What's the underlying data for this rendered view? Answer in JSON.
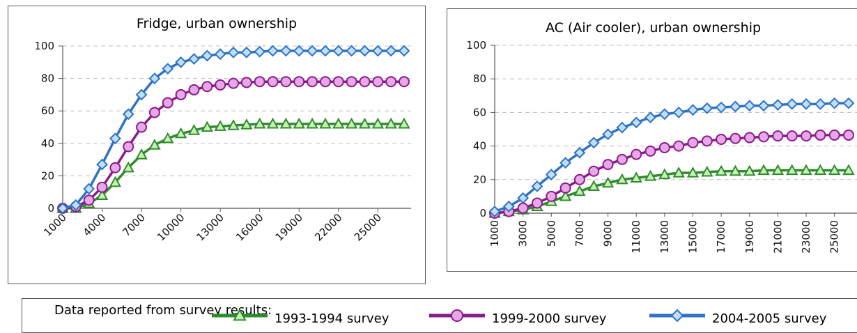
{
  "legend_heading": "Data reported from survey results:",
  "chart_data": [
    {
      "type": "line",
      "title": "Fridge, urban ownership",
      "xlabel": "",
      "ylabel": "",
      "x": [
        1000,
        2000,
        3000,
        4000,
        5000,
        6000,
        7000,
        8000,
        9000,
        10000,
        11000,
        12000,
        13000,
        14000,
        15000,
        16000,
        17000,
        18000,
        19000,
        20000,
        21000,
        22000,
        23000,
        24000,
        25000,
        26000,
        27000
      ],
      "x_tick_labels": [
        "1000",
        "4000",
        "7000",
        "10000",
        "13000",
        "16000",
        "19000",
        "22000",
        "25000"
      ],
      "ylim": [
        0,
        100
      ],
      "y_ticks": [
        0,
        20,
        40,
        60,
        80,
        100
      ],
      "grid": true,
      "series": [
        {
          "name": "1993-1994 survey",
          "color": "#2e8b2e",
          "marker": "triangle",
          "values": [
            0,
            0,
            3,
            8,
            16,
            25,
            33,
            39,
            43,
            46,
            48,
            50,
            50.5,
            51,
            51.5,
            52,
            52,
            52,
            52,
            52,
            52,
            52,
            52,
            52,
            52,
            52,
            52
          ]
        },
        {
          "name": "1999-2000 survey",
          "color": "#8b1a8b",
          "marker": "circle",
          "values": [
            0,
            1,
            5,
            13,
            25,
            38,
            50,
            59,
            65,
            70,
            73,
            75,
            76,
            77,
            77.5,
            78,
            78,
            78,
            78,
            78,
            78,
            78,
            78,
            78,
            78,
            78,
            78
          ]
        },
        {
          "name": "2004-2005 survey",
          "color": "#2f72c4",
          "marker": "diamond",
          "values": [
            0,
            2,
            12,
            27,
            43,
            58,
            70,
            80,
            86,
            90,
            92,
            94,
            95,
            96,
            96,
            96.5,
            97,
            97,
            97,
            97,
            97,
            97,
            97,
            97,
            97,
            97,
            97
          ]
        }
      ]
    },
    {
      "type": "line",
      "title": "AC (Air cooler), urban ownership",
      "xlabel": "",
      "ylabel": "",
      "x": [
        1000,
        2000,
        3000,
        4000,
        5000,
        6000,
        7000,
        8000,
        9000,
        10000,
        11000,
        12000,
        13000,
        14000,
        15000,
        16000,
        17000,
        18000,
        19000,
        20000,
        21000,
        22000,
        23000,
        24000,
        25000,
        26000
      ],
      "x_tick_labels": [
        "1000",
        "3000",
        "5000",
        "7000",
        "9000",
        "11000",
        "13000",
        "15000",
        "17000",
        "19000",
        "21000",
        "23000",
        "25000"
      ],
      "ylim": [
        0,
        100
      ],
      "y_ticks": [
        0,
        20,
        40,
        60,
        80,
        100
      ],
      "grid": true,
      "series": [
        {
          "name": "1993-1994 survey",
          "color": "#2e8b2e",
          "marker": "triangle",
          "values": [
            0,
            1,
            2,
            4,
            7,
            10,
            13,
            16,
            18,
            20,
            21,
            22,
            23,
            24,
            24,
            24.5,
            25,
            25,
            25,
            25.5,
            25.5,
            25.5,
            25.5,
            25.5,
            25.5,
            25.5
          ]
        },
        {
          "name": "1999-2000 survey",
          "color": "#8b1a8b",
          "marker": "circle",
          "values": [
            0,
            1,
            3,
            6,
            10,
            15,
            20,
            25,
            29,
            32,
            35,
            37,
            39,
            40,
            42,
            43,
            44,
            44.5,
            45,
            45.5,
            46,
            46,
            46,
            46.5,
            46.5,
            46.5
          ]
        },
        {
          "name": "2004-2005 survey",
          "color": "#2f72c4",
          "marker": "diamond",
          "values": [
            1,
            4,
            9,
            16,
            23,
            30,
            36,
            42,
            47,
            51,
            54,
            57,
            59,
            60,
            61.5,
            62.5,
            63,
            63.5,
            64,
            64,
            64.5,
            65,
            65,
            65,
            65.5,
            65.5
          ]
        }
      ]
    }
  ]
}
